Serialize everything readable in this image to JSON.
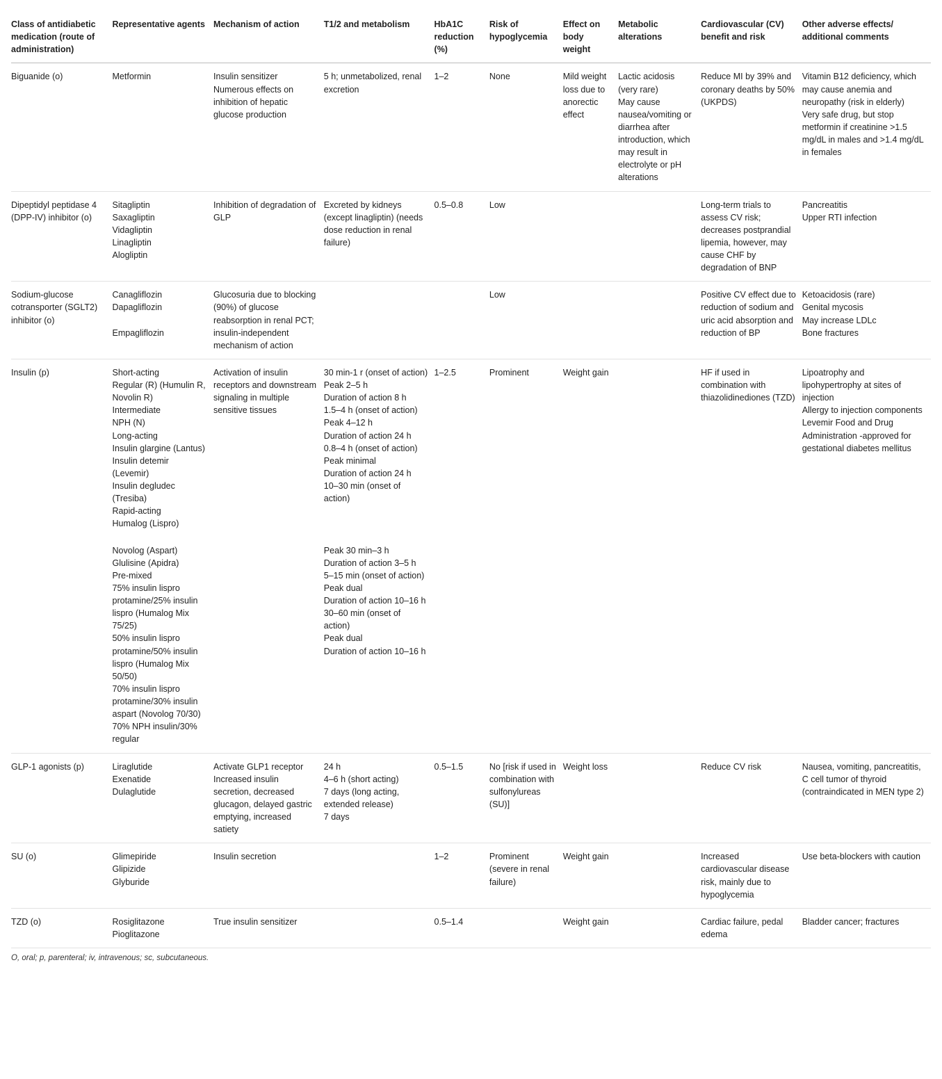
{
  "table": {
    "type": "table",
    "background_color": "#ffffff",
    "text_color": "#222222",
    "header_border_color": "#bbbbbb",
    "row_border_color": "#e2e2e2",
    "font_family": "Arial, Helvetica, sans-serif",
    "header_fontsize": 12.5,
    "cell_fontsize": 12.5,
    "footnote_fontsize": 11.5,
    "columns": [
      {
        "label": "Class of antidiabetic medication (route of administration)",
        "width": "11%"
      },
      {
        "label": "Representative agents",
        "width": "11%"
      },
      {
        "label": "Mechanism of action",
        "width": "12%"
      },
      {
        "label": "T1/2 and metabolism",
        "width": "12%"
      },
      {
        "label": "HbA1C reduction (%)",
        "width": "6%"
      },
      {
        "label": "Risk of hypoglycemia",
        "width": "8%"
      },
      {
        "label": "Effect on body weight",
        "width": "6%"
      },
      {
        "label": "Metabolic alterations",
        "width": "9%"
      },
      {
        "label": "Cardiovascular (CV) benefit and risk",
        "width": "11%"
      },
      {
        "label": "Other adverse effects/ additional comments",
        "width": "14%"
      }
    ],
    "rows": [
      {
        "cells": [
          "Biguanide (o)",
          "Metformin",
          "Insulin sensitizer\nNumerous effects on inhibition of hepatic glucose production",
          "5 h; unmetabolized, renal excretion",
          "1–2",
          "None",
          "Mild weight loss due to anorectic effect",
          "Lactic acidosis (very rare)\nMay cause nausea/vomiting or diarrhea after introduction, which may result in electrolyte or pH alterations",
          "Reduce MI by 39% and coronary deaths by 50% (UKPDS)",
          "Vitamin B12 deficiency, which may cause anemia and neuropathy (risk in elderly)\nVery safe drug, but stop metformin if creatinine >1.5 mg/dL in males and >1.4 mg/dL in females"
        ]
      },
      {
        "cells": [
          "Dipeptidyl peptidase 4 (DPP-IV) inhibitor (o)",
          "Sitagliptin\nSaxagliptin\nVidagliptin\nLinagliptin\nAlogliptin",
          "Inhibition of degradation of GLP",
          "Excreted by kidneys (except linagliptin) (needs dose reduction in renal failure)",
          "0.5–0.8",
          "Low",
          "",
          "",
          "Long-term trials to assess CV risk; decreases postprandial lipemia, however, may cause CHF by degradation of BNP",
          "Pancreatitis\nUpper RTI infection"
        ]
      },
      {
        "cells": [
          "Sodium-glucose cotransporter (SGLT2) inhibitor (o)",
          "Canagliflozin\nDapagliflozin\n\nEmpagliflozin",
          "Glucosuria due to blocking (90%) of glucose reabsorption in renal PCT; insulin-independent mechanism of action",
          "",
          "",
          "Low",
          "",
          "",
          "Positive CV effect due to reduction of sodium and uric acid absorption and reduction of BP",
          "Ketoacidosis (rare)\nGenital mycosis\nMay increase LDLc\nBone fractures"
        ]
      },
      {
        "no_border": true,
        "cells": [
          "Insulin (p)",
          "Short-acting\nRegular (R) (Humulin R, Novolin R)\nIntermediate\nNPH (N)\nLong-acting\nInsulin glargine (Lantus)\nInsulin detemir (Levemir)\nInsulin degludec (Tresiba)\nRapid-acting\nHumalog (Lispro)",
          "Activation of insulin receptors and downstream signaling in multiple sensitive tissues",
          "30 min-1 r (onset of action)\nPeak 2–5 h\nDuration of action 8 h\n1.5–4 h (onset of action)\nPeak 4–12 h\nDuration of action 24 h\n0.8–4 h (onset of action)\nPeak minimal\nDuration of action 24 h\n10–30 min (onset of action)",
          "1–2.5",
          "Prominent",
          "Weight gain",
          "",
          "HF if used in combination with thiazolidinediones (TZD)",
          "Lipoatrophy and lipohypertrophy at sites of injection\nAllergy to injection components\nLevemir Food and Drug Administration -approved for gestational diabetes mellitus"
        ]
      },
      {
        "cells": [
          "",
          "Novolog (Aspart)\nGlulisine (Apidra)\nPre-mixed\n75% insulin lispro protamine/25% insulin lispro (Humalog Mix 75/25)\n50% insulin lispro protamine/50% insulin lispro (Humalog Mix 50/50)\n70% insulin lispro protamine/30% insulin aspart (Novolog 70/30)\n70% NPH insulin/30% regular",
          "",
          "Peak 30 min–3 h\nDuration of action 3–5 h\n5–15 min (onset of action)\nPeak dual\nDuration of action 10–16 h\n30–60 min (onset of action)\nPeak dual\nDuration of action 10–16 h",
          "",
          "",
          "",
          "",
          "",
          ""
        ]
      },
      {
        "cells": [
          "GLP-1 agonists (p)",
          "Liraglutide\nExenatide\nDulaglutide",
          "Activate GLP1 receptor\nIncreased insulin secretion, decreased glucagon, delayed gastric emptying, increased satiety",
          "24 h\n4–6 h (short acting)\n7 days (long acting, extended release)\n7 days",
          "0.5–1.5",
          "No [risk if used in combination with sulfonylureas (SU)]",
          "Weight loss",
          "",
          "Reduce CV risk",
          "Nausea, vomiting, pancreatitis, C cell tumor of thyroid (contraindicated in MEN type 2)"
        ]
      },
      {
        "cells": [
          "SU (o)",
          "Glimepiride\nGlipizide\nGlyburide",
          "Insulin secretion",
          "",
          "1–2",
          "Prominent (severe in renal failure)",
          "Weight gain",
          "",
          "Increased cardiovascular disease risk, mainly due to hypoglycemia",
          "Use beta-blockers with caution"
        ]
      },
      {
        "cells": [
          "TZD (o)",
          "Rosiglitazone\nPioglitazone",
          "True insulin sensitizer",
          "",
          "0.5–1.4",
          "",
          "Weight gain",
          "",
          "Cardiac failure, pedal edema",
          "Bladder cancer; fractures"
        ]
      }
    ],
    "footnote": "O, oral; p, parenteral; iv, intravenous; sc, subcutaneous."
  }
}
